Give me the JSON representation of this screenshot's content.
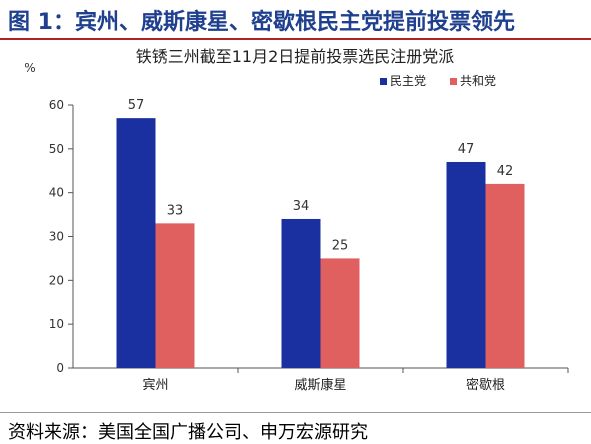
{
  "figure": {
    "title": "图 1：宾州、威斯康星、密歇根民主党提前投票领先",
    "source": "资料来源：美国全国广播公司、申万宏源研究"
  },
  "colors": {
    "democrat": "#1a2fa0",
    "republican": "#e06060",
    "title": "#1f3f8f",
    "rule": "#b22222"
  },
  "chart_data": {
    "type": "bar",
    "title": "铁锈三州截至11月2日提前投票选民注册党派",
    "ylabel": "%",
    "xlabel": "",
    "categories": [
      "宾州",
      "威斯康星",
      "密歇根"
    ],
    "series": [
      {
        "name": "民主党",
        "values": [
          57,
          34,
          47
        ]
      },
      {
        "name": "共和党",
        "values": [
          33,
          25,
          42
        ]
      }
    ],
    "ylim": [
      0,
      60
    ],
    "yticks": [
      0,
      10,
      20,
      30,
      40,
      50,
      60
    ],
    "legend": "top-right",
    "grid": false,
    "data_labels": true
  }
}
